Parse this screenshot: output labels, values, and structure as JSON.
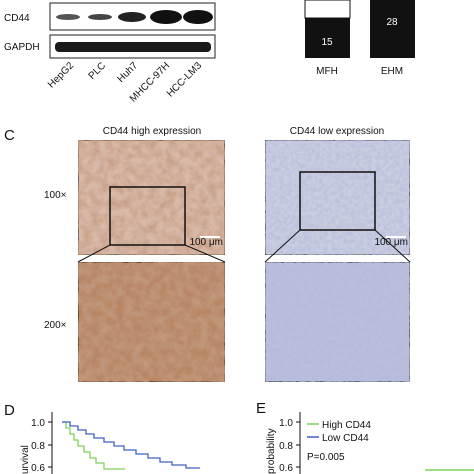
{
  "blot": {
    "rows": [
      "CD44",
      "GAPDH"
    ],
    "lanes": [
      "HepG2",
      "PLC",
      "Huh7",
      "MHCC-97H",
      "HCC-LM3"
    ]
  },
  "bars": {
    "items": [
      {
        "label": "MFH",
        "value": 15
      },
      {
        "label": "EHM",
        "value": 28
      }
    ]
  },
  "panel_c": {
    "letter": "C",
    "columns": [
      "CD44 high expression",
      "CD44 low expression"
    ],
    "rows": [
      "100×",
      "200×"
    ],
    "scale_bar": "100 μm"
  },
  "panel_d": {
    "letter": "D",
    "y_label": "urvival",
    "yticks": [
      "1.0",
      "0.8",
      "0.6"
    ]
  },
  "panel_e": {
    "letter": "E",
    "y_label": "probability",
    "yticks": [
      "1.0",
      "0.8",
      "0.6"
    ],
    "legend": [
      "High CD44",
      "Low CD44"
    ],
    "p_value": "P=0.005"
  }
}
